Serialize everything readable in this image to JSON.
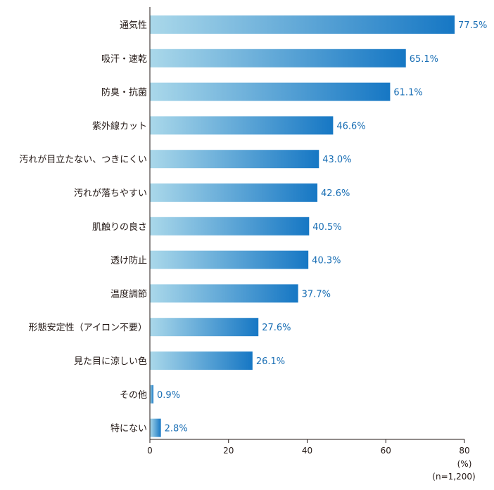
{
  "chart_data": {
    "type": "bar",
    "orientation": "horizontal",
    "categories": [
      "通気性",
      "吸汗・速乾",
      "防臭・抗菌",
      "紫外線カット",
      "汚れが目立たない、つきにくい",
      "汚れが落ちやすい",
      "肌触りの良さ",
      "透け防止",
      "温度調節",
      "形態安定性（アイロン不要）",
      "見た目に涼しい色",
      "その他",
      "特にない"
    ],
    "values": [
      77.5,
      65.1,
      61.1,
      46.6,
      43.0,
      42.6,
      40.5,
      40.3,
      37.7,
      27.6,
      26.1,
      0.9,
      2.8
    ],
    "value_labels": [
      "77.5%",
      "65.1%",
      "61.1%",
      "46.6%",
      "43.0%",
      "42.6%",
      "40.5%",
      "40.3%",
      "37.7%",
      "27.6%",
      "26.1%",
      "0.9%",
      "2.8%"
    ],
    "xlim": [
      0,
      80
    ],
    "xticks": [
      "0",
      "20",
      "40",
      "60",
      "80"
    ],
    "unit": "(%)",
    "sample_note": "(n=1,200)",
    "bar_gradient": [
      "#aad8ea",
      "#1677c4"
    ],
    "value_color": "#1a6fb5"
  }
}
